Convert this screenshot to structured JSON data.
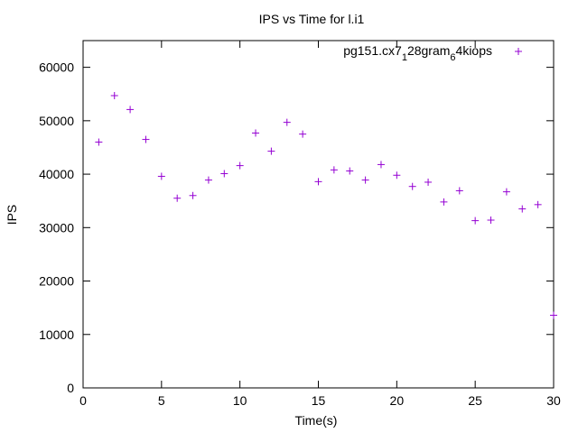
{
  "chart_data": {
    "type": "scatter",
    "title": "IPS vs Time for l.i1",
    "xlabel": "Time(s)",
    "ylabel": "IPS",
    "xlim": [
      0,
      30
    ],
    "ylim": [
      0,
      65000
    ],
    "xticks": [
      0,
      5,
      10,
      15,
      20,
      25,
      30
    ],
    "yticks": [
      0,
      10000,
      20000,
      30000,
      40000,
      50000,
      60000
    ],
    "grid": false,
    "legend_position": "top-right",
    "series": [
      {
        "name_parts": [
          "pg151.cx7",
          "1",
          "28gram",
          "6",
          "4kiops"
        ],
        "color": "#9400d3",
        "marker": "plus",
        "points": [
          [
            1,
            46000
          ],
          [
            2,
            54700
          ],
          [
            3,
            52100
          ],
          [
            4,
            46500
          ],
          [
            5,
            39600
          ],
          [
            6,
            35500
          ],
          [
            7,
            36000
          ],
          [
            8,
            38900
          ],
          [
            9,
            40100
          ],
          [
            10,
            41600
          ],
          [
            11,
            47700
          ],
          [
            12,
            44300
          ],
          [
            13,
            49700
          ],
          [
            14,
            47500
          ],
          [
            15,
            38600
          ],
          [
            16,
            40800
          ],
          [
            17,
            40600
          ],
          [
            18,
            38900
          ],
          [
            19,
            41800
          ],
          [
            20,
            39800
          ],
          [
            21,
            37700
          ],
          [
            22,
            38500
          ],
          [
            23,
            34800
          ],
          [
            24,
            36900
          ],
          [
            25,
            31300
          ],
          [
            26,
            31400
          ],
          [
            27,
            36700
          ],
          [
            28,
            33500
          ],
          [
            29,
            34300
          ],
          [
            30,
            13600
          ]
        ]
      }
    ]
  }
}
